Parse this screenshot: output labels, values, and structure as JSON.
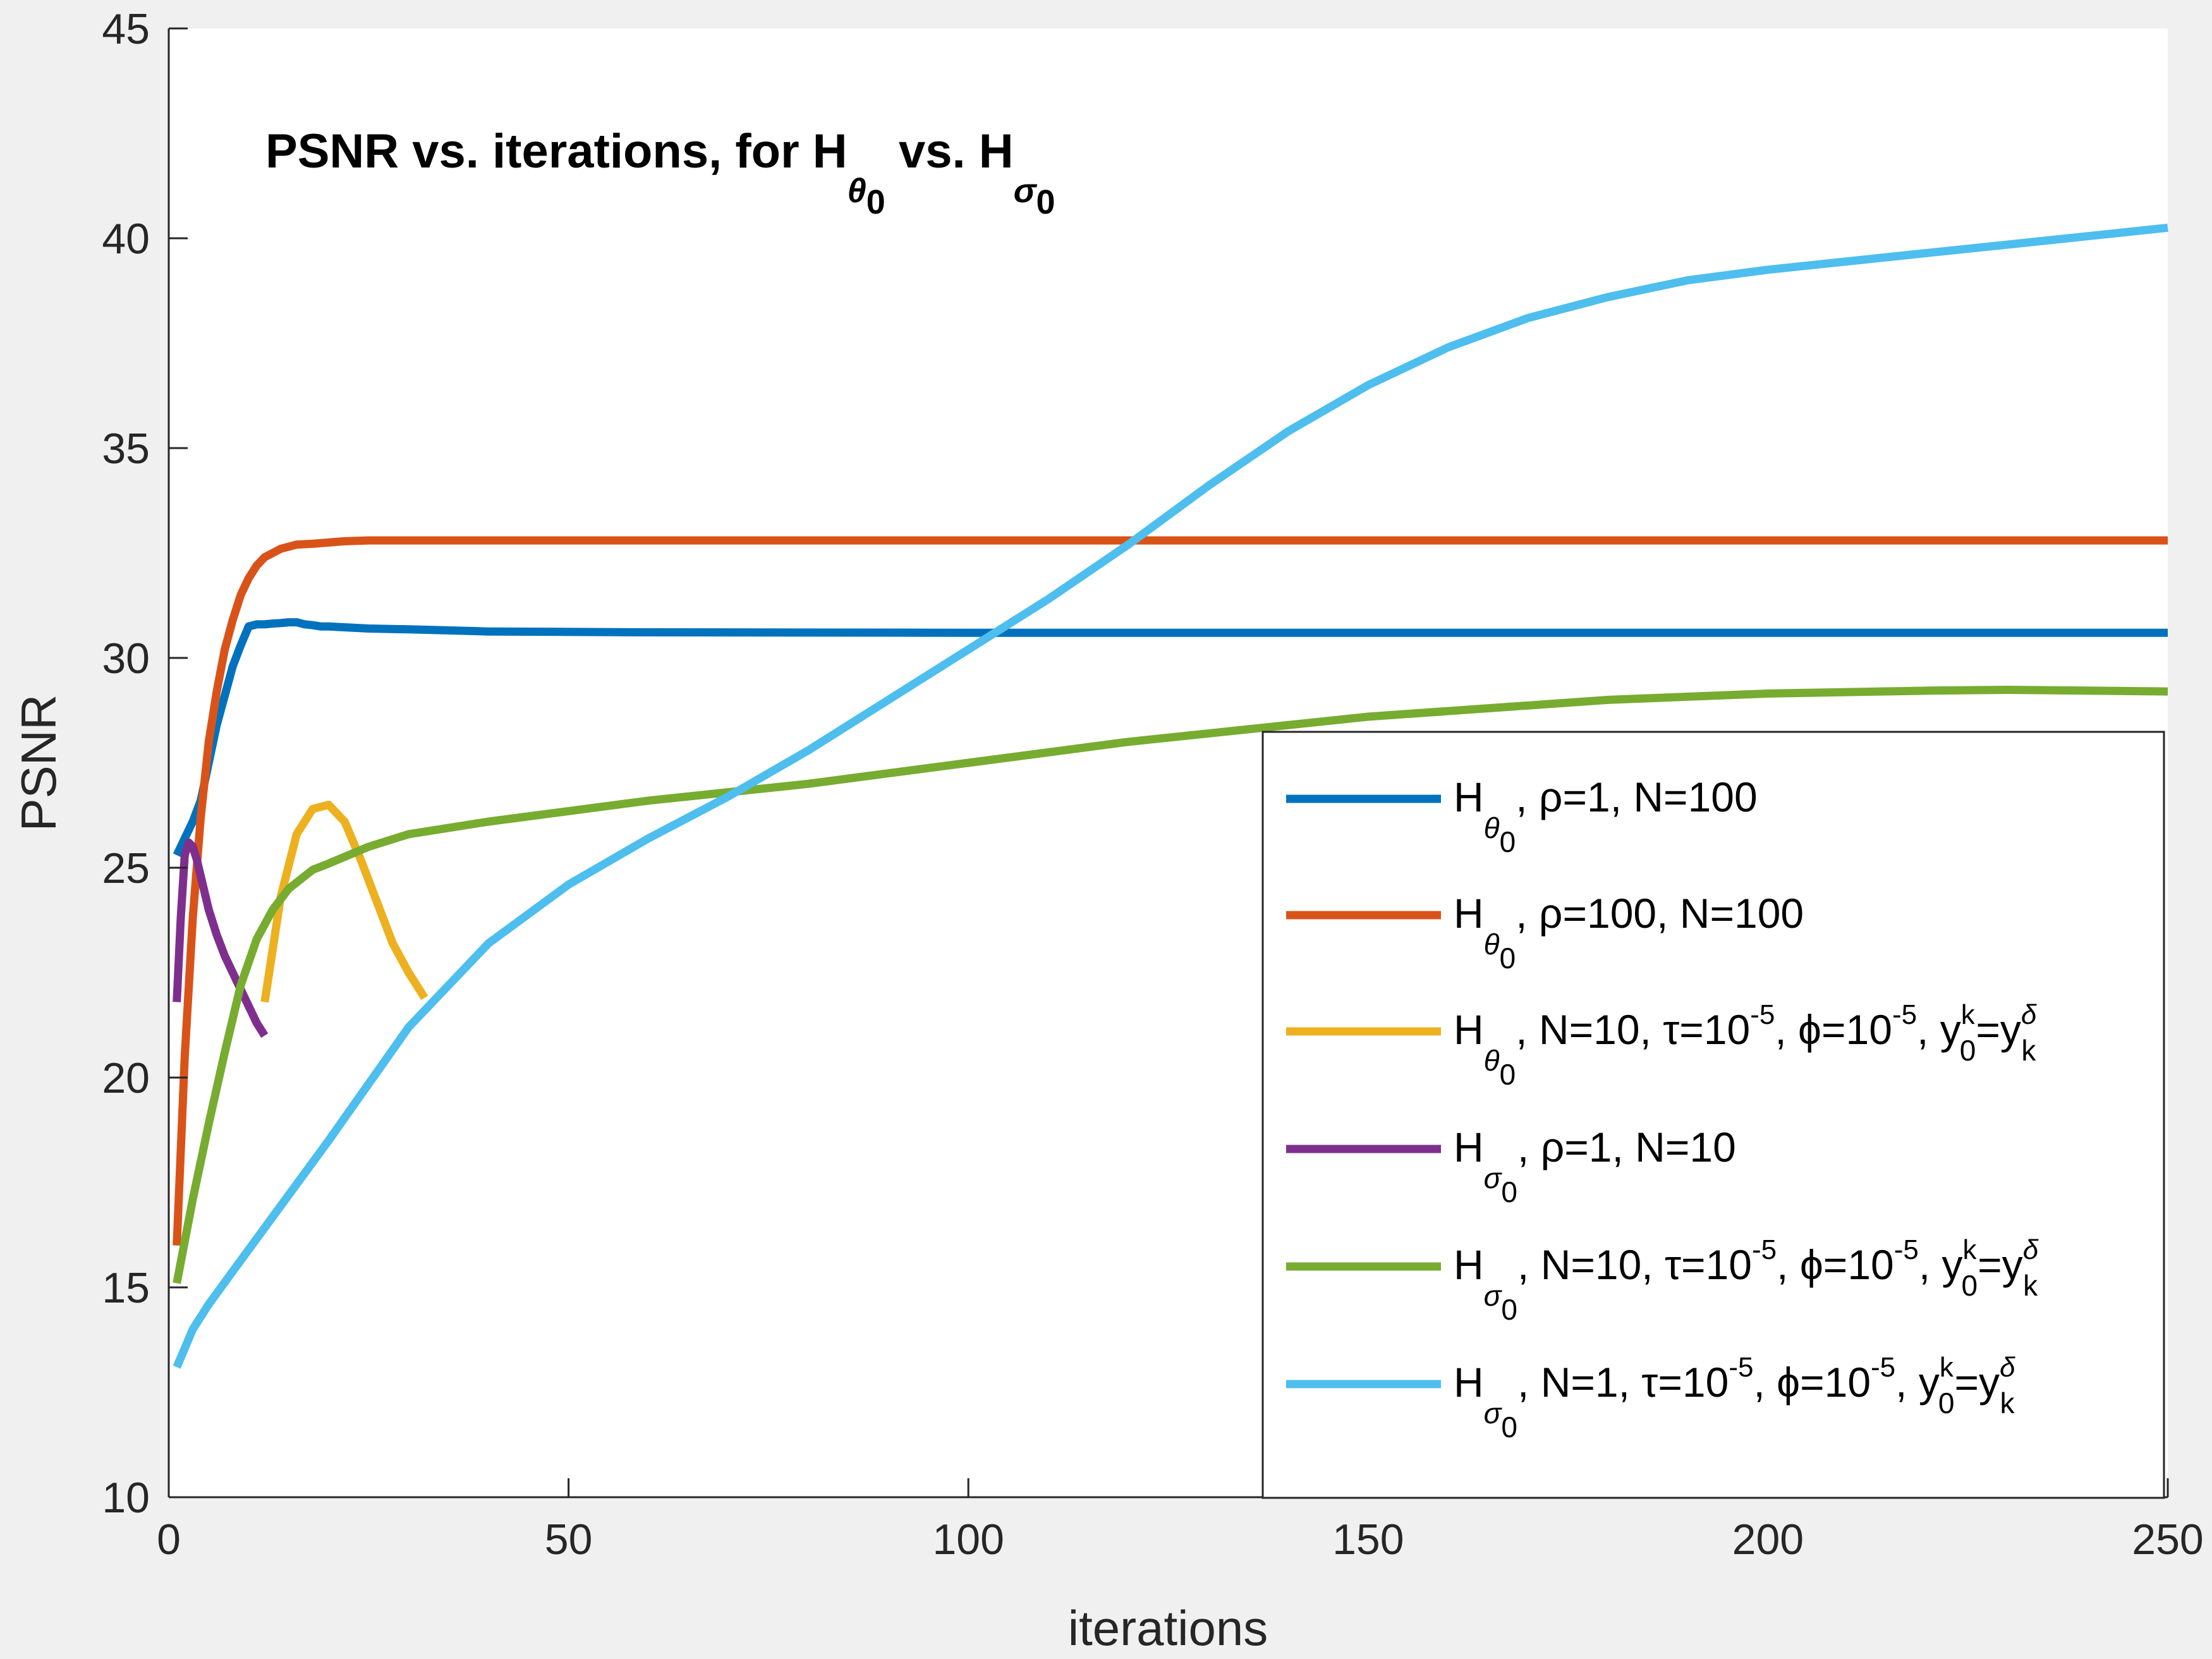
{
  "chart_data": {
    "type": "line",
    "title": "PSNR vs. iterations, for H",
    "title_parts": {
      "h1": "H",
      "s1": "θ",
      "s1b": "0",
      "mid": " vs. H",
      "s2": "σ",
      "s2b": "0",
      "lead": "PSNR vs. iterations, for "
    },
    "xlabel": "iterations",
    "ylabel": "PSNR",
    "xlim": [
      0,
      250
    ],
    "ylim": [
      10,
      45
    ],
    "xticks": [
      "0",
      "50",
      "100",
      "150",
      "200",
      "250"
    ],
    "yticks": [
      "10",
      "15",
      "20",
      "25",
      "30",
      "35",
      "40",
      "45"
    ],
    "grid": false,
    "legend_position": "bottom-right",
    "series": [
      {
        "legend": {
          "sym": "θ",
          "text": ", ρ=1, N=100"
        },
        "color": "#0072BD",
        "x": [
          1,
          2,
          3,
          4,
          5,
          6,
          7,
          8,
          9,
          10,
          11,
          12,
          13,
          14,
          15,
          16,
          17,
          18,
          19,
          20,
          25,
          30,
          40,
          60,
          100,
          150,
          200,
          250
        ],
        "y": [
          25.3,
          25.7,
          26.1,
          26.6,
          27.5,
          28.4,
          29.1,
          29.8,
          30.3,
          30.75,
          30.8,
          30.8,
          30.82,
          30.83,
          30.85,
          30.85,
          30.8,
          30.78,
          30.75,
          30.75,
          30.7,
          30.68,
          30.63,
          30.61,
          30.6,
          30.6,
          30.6,
          30.6
        ]
      },
      {
        "legend": {
          "sym": "θ",
          "text": ", ρ=100, N=100"
        },
        "color": "#D95319",
        "x": [
          1,
          2,
          3,
          4,
          5,
          6,
          7,
          8,
          9,
          10,
          11,
          12,
          13,
          14,
          15,
          16,
          18,
          20,
          22,
          25,
          30,
          40,
          60,
          100,
          150,
          200,
          250
        ],
        "y": [
          16.0,
          20.5,
          23.8,
          26.2,
          28.0,
          29.2,
          30.2,
          30.9,
          31.5,
          31.9,
          32.2,
          32.4,
          32.5,
          32.6,
          32.65,
          32.7,
          32.72,
          32.75,
          32.78,
          32.8,
          32.8,
          32.8,
          32.8,
          32.8,
          32.8,
          32.8,
          32.8
        ]
      },
      {
        "legend": {
          "sym": "θ",
          "text": ", N=10, τ=10",
          "exp1": "-5",
          "text2": ", ϕ=10",
          "exp2": "-5",
          "text3": ", y",
          "sup": "k",
          "sub": "0",
          "text4": "=y",
          "sup2": "δ",
          "sub2": "k"
        },
        "color": "#EDB120",
        "x": [
          12,
          14,
          16,
          18,
          20,
          22,
          24,
          26,
          28,
          30,
          32
        ],
        "y": [
          21.8,
          24.3,
          25.8,
          26.4,
          26.5,
          26.1,
          25.2,
          24.2,
          23.2,
          22.5,
          21.9
        ]
      },
      {
        "legend": {
          "sym": "σ",
          "text": ", ρ=1, N=10"
        },
        "color": "#7E2F8E",
        "x": [
          1,
          1.5,
          2,
          2.5,
          3,
          3.5,
          4,
          5,
          6,
          7,
          8,
          9,
          10,
          11,
          12
        ],
        "y": [
          21.8,
          23.8,
          25.3,
          25.6,
          25.5,
          25.2,
          24.8,
          24.0,
          23.4,
          22.9,
          22.5,
          22.1,
          21.7,
          21.3,
          21.0
        ]
      },
      {
        "legend": {
          "sym": "σ",
          "text": ", N=10, τ=10",
          "exp1": "-5",
          "text2": ", ϕ=10",
          "exp2": "-5",
          "text3": ", y",
          "sup": "k",
          "sub": "0",
          "text4": "=y",
          "sup2": "δ",
          "sub2": "k"
        },
        "color": "#77AC30",
        "x": [
          1,
          3,
          5,
          7,
          9,
          11,
          13,
          15,
          18,
          20,
          25,
          30,
          40,
          50,
          60,
          70,
          80,
          100,
          120,
          150,
          180,
          200,
          220,
          230,
          240,
          250
        ],
        "y": [
          15.1,
          17.1,
          18.9,
          20.6,
          22.2,
          23.3,
          24.0,
          24.5,
          24.95,
          25.1,
          25.5,
          25.8,
          26.1,
          26.35,
          26.6,
          26.8,
          27.0,
          27.5,
          28.0,
          28.6,
          29.0,
          29.15,
          29.22,
          29.24,
          29.22,
          29.2
        ]
      },
      {
        "legend": {
          "sym": "σ",
          "text": ", N=1, τ=10",
          "exp1": "-5",
          "text2": ", ϕ=10",
          "exp2": "-5",
          "text3": ", y",
          "sup": "k",
          "sub": "0",
          "text4": "=y",
          "sup2": "δ",
          "sub2": "k"
        },
        "color": "#4DBEEE",
        "x": [
          1,
          3,
          5,
          10,
          20,
          30,
          40,
          50,
          60,
          70,
          80,
          90,
          100,
          110,
          120,
          130,
          140,
          150,
          160,
          170,
          180,
          190,
          200,
          210,
          220,
          230,
          240,
          250
        ],
        "y": [
          13.1,
          14.0,
          14.6,
          15.9,
          18.5,
          21.2,
          23.2,
          24.6,
          25.7,
          26.7,
          27.8,
          29.0,
          30.2,
          31.4,
          32.7,
          34.1,
          35.4,
          36.5,
          37.4,
          38.1,
          38.6,
          39.0,
          39.25,
          39.45,
          39.65,
          39.85,
          40.05,
          40.25
        ]
      }
    ]
  }
}
